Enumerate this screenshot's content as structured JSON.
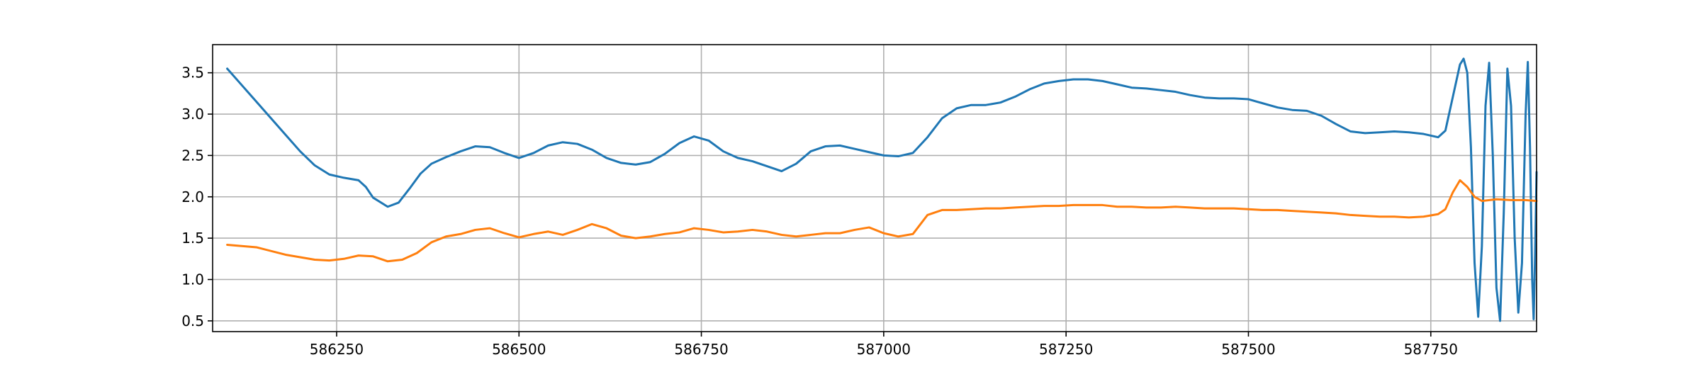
{
  "chart_data": {
    "type": "line",
    "title": "",
    "xlabel": "",
    "ylabel": "",
    "xlim": [
      586080,
      587895
    ],
    "ylim": [
      0.37,
      3.84
    ],
    "xticks": [
      586250,
      586500,
      586750,
      587000,
      587250,
      587500,
      587750
    ],
    "xtick_labels": [
      "586250",
      "586500",
      "586750",
      "587000",
      "587250",
      "587500",
      "587750"
    ],
    "yticks": [
      0.5,
      1.0,
      1.5,
      2.0,
      2.5,
      3.0,
      3.5
    ],
    "ytick_labels": [
      "0.5",
      "1.0",
      "1.5",
      "2.0",
      "2.5",
      "3.0",
      "3.5"
    ],
    "grid": true,
    "legend": "none",
    "series": [
      {
        "color": "#1f77b4",
        "points": [
          [
            586100,
            3.55
          ],
          [
            586120,
            3.35
          ],
          [
            586140,
            3.15
          ],
          [
            586160,
            2.95
          ],
          [
            586180,
            2.75
          ],
          [
            586200,
            2.55
          ],
          [
            586220,
            2.38
          ],
          [
            586240,
            2.27
          ],
          [
            586260,
            2.23
          ],
          [
            586280,
            2.2
          ],
          [
            586290,
            2.12
          ],
          [
            586300,
            1.99
          ],
          [
            586320,
            1.88
          ],
          [
            586335,
            1.93
          ],
          [
            586350,
            2.1
          ],
          [
            586365,
            2.28
          ],
          [
            586380,
            2.4
          ],
          [
            586400,
            2.48
          ],
          [
            586420,
            2.55
          ],
          [
            586440,
            2.61
          ],
          [
            586460,
            2.6
          ],
          [
            586480,
            2.53
          ],
          [
            586500,
            2.47
          ],
          [
            586520,
            2.53
          ],
          [
            586540,
            2.62
          ],
          [
            586560,
            2.66
          ],
          [
            586580,
            2.64
          ],
          [
            586600,
            2.57
          ],
          [
            586620,
            2.47
          ],
          [
            586640,
            2.41
          ],
          [
            586660,
            2.39
          ],
          [
            586680,
            2.42
          ],
          [
            586700,
            2.52
          ],
          [
            586720,
            2.65
          ],
          [
            586740,
            2.73
          ],
          [
            586760,
            2.68
          ],
          [
            586780,
            2.55
          ],
          [
            586800,
            2.47
          ],
          [
            586820,
            2.43
          ],
          [
            586840,
            2.37
          ],
          [
            586860,
            2.31
          ],
          [
            586880,
            2.4
          ],
          [
            586900,
            2.55
          ],
          [
            586920,
            2.61
          ],
          [
            586940,
            2.62
          ],
          [
            586960,
            2.58
          ],
          [
            586980,
            2.54
          ],
          [
            587000,
            2.5
          ],
          [
            587020,
            2.49
          ],
          [
            587040,
            2.53
          ],
          [
            587060,
            2.72
          ],
          [
            587080,
            2.95
          ],
          [
            587100,
            3.07
          ],
          [
            587120,
            3.11
          ],
          [
            587140,
            3.11
          ],
          [
            587160,
            3.14
          ],
          [
            587180,
            3.21
          ],
          [
            587200,
            3.3
          ],
          [
            587220,
            3.37
          ],
          [
            587240,
            3.4
          ],
          [
            587260,
            3.42
          ],
          [
            587280,
            3.42
          ],
          [
            587300,
            3.4
          ],
          [
            587320,
            3.36
          ],
          [
            587340,
            3.32
          ],
          [
            587360,
            3.31
          ],
          [
            587380,
            3.29
          ],
          [
            587400,
            3.27
          ],
          [
            587420,
            3.23
          ],
          [
            587440,
            3.2
          ],
          [
            587460,
            3.19
          ],
          [
            587480,
            3.19
          ],
          [
            587500,
            3.18
          ],
          [
            587520,
            3.13
          ],
          [
            587540,
            3.08
          ],
          [
            587560,
            3.05
          ],
          [
            587580,
            3.04
          ],
          [
            587600,
            2.98
          ],
          [
            587620,
            2.88
          ],
          [
            587640,
            2.79
          ],
          [
            587660,
            2.77
          ],
          [
            587680,
            2.78
          ],
          [
            587700,
            2.79
          ],
          [
            587720,
            2.78
          ],
          [
            587740,
            2.76
          ],
          [
            587760,
            2.72
          ],
          [
            587770,
            2.8
          ],
          [
            587780,
            3.2
          ],
          [
            587790,
            3.6
          ],
          [
            587795,
            3.67
          ],
          [
            587800,
            3.5
          ],
          [
            587805,
            2.6
          ],
          [
            587810,
            1.2
          ],
          [
            587815,
            0.55
          ],
          [
            587820,
            1.4
          ],
          [
            587825,
            3.1
          ],
          [
            587830,
            3.62
          ],
          [
            587835,
            2.5
          ],
          [
            587840,
            0.9
          ],
          [
            587845,
            0.5
          ],
          [
            587850,
            1.8
          ],
          [
            587855,
            3.55
          ],
          [
            587860,
            3.1
          ],
          [
            587865,
            1.5
          ],
          [
            587870,
            0.6
          ],
          [
            587875,
            1.2
          ],
          [
            587880,
            3.0
          ],
          [
            587883,
            3.63
          ],
          [
            587886,
            2.6
          ],
          [
            587889,
            1.0
          ],
          [
            587891,
            0.52
          ],
          [
            587893,
            1.3
          ],
          [
            587895,
            2.3
          ]
        ]
      },
      {
        "color": "#ff7f0e",
        "points": [
          [
            586100,
            1.42
          ],
          [
            586140,
            1.39
          ],
          [
            586180,
            1.3
          ],
          [
            586200,
            1.27
          ],
          [
            586220,
            1.24
          ],
          [
            586240,
            1.23
          ],
          [
            586260,
            1.25
          ],
          [
            586280,
            1.29
          ],
          [
            586300,
            1.28
          ],
          [
            586320,
            1.22
          ],
          [
            586340,
            1.24
          ],
          [
            586360,
            1.32
          ],
          [
            586380,
            1.45
          ],
          [
            586400,
            1.52
          ],
          [
            586420,
            1.55
          ],
          [
            586440,
            1.6
          ],
          [
            586460,
            1.62
          ],
          [
            586480,
            1.56
          ],
          [
            586500,
            1.51
          ],
          [
            586520,
            1.55
          ],
          [
            586540,
            1.58
          ],
          [
            586560,
            1.54
          ],
          [
            586580,
            1.6
          ],
          [
            586600,
            1.67
          ],
          [
            586620,
            1.62
          ],
          [
            586640,
            1.53
          ],
          [
            586660,
            1.5
          ],
          [
            586680,
            1.52
          ],
          [
            586700,
            1.55
          ],
          [
            586720,
            1.57
          ],
          [
            586740,
            1.62
          ],
          [
            586760,
            1.6
          ],
          [
            586780,
            1.57
          ],
          [
            586800,
            1.58
          ],
          [
            586820,
            1.6
          ],
          [
            586840,
            1.58
          ],
          [
            586860,
            1.54
          ],
          [
            586880,
            1.52
          ],
          [
            586900,
            1.54
          ],
          [
            586920,
            1.56
          ],
          [
            586940,
            1.56
          ],
          [
            586960,
            1.6
          ],
          [
            586980,
            1.63
          ],
          [
            587000,
            1.56
          ],
          [
            587020,
            1.52
          ],
          [
            587040,
            1.55
          ],
          [
            587060,
            1.78
          ],
          [
            587080,
            1.84
          ],
          [
            587100,
            1.84
          ],
          [
            587120,
            1.85
          ],
          [
            587140,
            1.86
          ],
          [
            587160,
            1.86
          ],
          [
            587180,
            1.87
          ],
          [
            587200,
            1.88
          ],
          [
            587220,
            1.89
          ],
          [
            587240,
            1.89
          ],
          [
            587260,
            1.9
          ],
          [
            587280,
            1.9
          ],
          [
            587300,
            1.9
          ],
          [
            587320,
            1.88
          ],
          [
            587340,
            1.88
          ],
          [
            587360,
            1.87
          ],
          [
            587380,
            1.87
          ],
          [
            587400,
            1.88
          ],
          [
            587420,
            1.87
          ],
          [
            587440,
            1.86
          ],
          [
            587460,
            1.86
          ],
          [
            587480,
            1.86
          ],
          [
            587500,
            1.85
          ],
          [
            587520,
            1.84
          ],
          [
            587540,
            1.84
          ],
          [
            587560,
            1.83
          ],
          [
            587580,
            1.82
          ],
          [
            587600,
            1.81
          ],
          [
            587620,
            1.8
          ],
          [
            587640,
            1.78
          ],
          [
            587660,
            1.77
          ],
          [
            587680,
            1.76
          ],
          [
            587700,
            1.76
          ],
          [
            587720,
            1.75
          ],
          [
            587740,
            1.76
          ],
          [
            587760,
            1.79
          ],
          [
            587770,
            1.85
          ],
          [
            587780,
            2.05
          ],
          [
            587790,
            2.2
          ],
          [
            587800,
            2.12
          ],
          [
            587810,
            2.0
          ],
          [
            587820,
            1.95
          ],
          [
            587840,
            1.97
          ],
          [
            587860,
            1.96
          ],
          [
            587880,
            1.96
          ],
          [
            587895,
            1.95
          ]
        ]
      }
    ]
  }
}
